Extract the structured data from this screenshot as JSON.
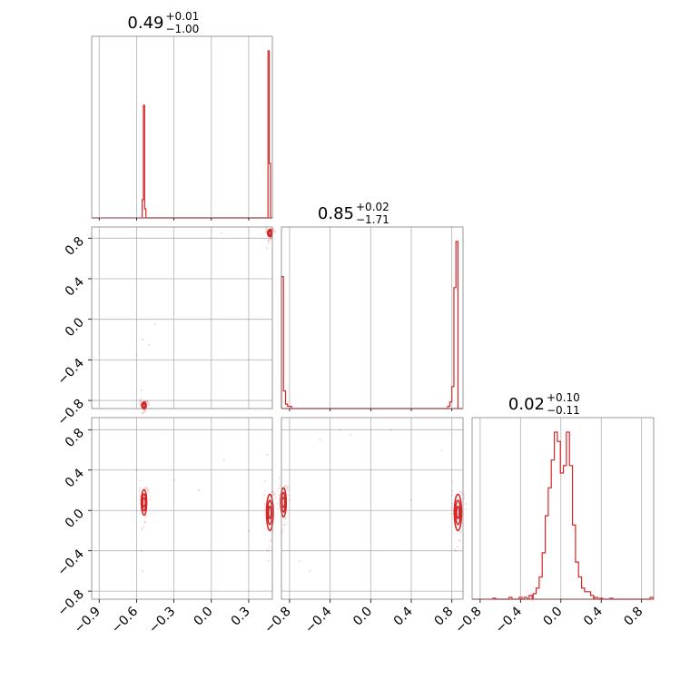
{
  "chart_data": {
    "type": "corner",
    "color": "#d62728",
    "grid": true,
    "parameter_summaries": [
      {
        "median": "0.49",
        "plus": "+0.01",
        "minus": "−1.00"
      },
      {
        "median": "0.85",
        "plus": "+0.02",
        "minus": "−1.71"
      },
      {
        "median": "0.02",
        "plus": "+0.10",
        "minus": "−0.11"
      }
    ],
    "axes": {
      "p0": {
        "lim": [
          -0.96,
          0.49
        ],
        "ticks": [
          -0.9,
          -0.6,
          -0.3,
          0.0,
          0.3
        ],
        "tick_labels": [
          "−0.9",
          "−0.6",
          "−0.3",
          "0.0",
          "0.3"
        ]
      },
      "p1": {
        "lim": [
          -0.88,
          0.91
        ],
        "ticks": [
          -0.8,
          -0.4,
          0.0,
          0.4,
          0.8
        ],
        "tick_labels": [
          "−0.8",
          "−0.4",
          "0.0",
          "0.4",
          "0.8"
        ]
      },
      "p2": {
        "lim": [
          -0.88,
          0.92
        ],
        "ticks": [
          -0.8,
          -0.4,
          0.0,
          0.4,
          0.8
        ],
        "tick_labels": [
          "−0.8",
          "−0.4",
          "0.0",
          "0.4",
          "0.8"
        ]
      }
    },
    "histograms": [
      {
        "param": "p0",
        "x": [
          -0.56,
          -0.55,
          -0.54,
          -0.53,
          -0.52,
          -0.51,
          0.45,
          0.46,
          0.47,
          0.48
        ],
        "counts": [
          0,
          0.1,
          0.62,
          0.05,
          0,
          0,
          0,
          0.92,
          0.3,
          0
        ]
      },
      {
        "param": "p1",
        "x": [
          -0.87,
          -0.85,
          -0.83,
          -0.81,
          -0.79,
          -0.77,
          0.77,
          0.79,
          0.81,
          0.83,
          0.85,
          0.87
        ],
        "counts": [
          0.6,
          0.08,
          0.02,
          0.01,
          0.01,
          0.0,
          0.01,
          0.03,
          0.1,
          0.55,
          0.76,
          0
        ]
      },
      {
        "param": "p2",
        "x": [
          -0.66,
          -0.5,
          -0.4,
          -0.35,
          -0.3,
          -0.26,
          -0.23,
          -0.2,
          -0.17,
          -0.14,
          -0.11,
          -0.08,
          -0.05,
          -0.02,
          0.01,
          0.04,
          0.07,
          0.1,
          0.13,
          0.16,
          0.19,
          0.22,
          0.25,
          0.28,
          0.31,
          0.35,
          0.4,
          0.5,
          0.9
        ],
        "counts": [
          0.005,
          0.01,
          0.01,
          0.01,
          0.02,
          0.03,
          0.06,
          0.12,
          0.25,
          0.45,
          0.6,
          0.75,
          0.9,
          0.85,
          0.68,
          0.72,
          0.9,
          0.72,
          0.4,
          0.2,
          0.12,
          0.06,
          0.04,
          0.04,
          0.02,
          0.01,
          0.005,
          0.005,
          0.01
        ]
      }
    ],
    "pair_panels": [
      {
        "x": "p0",
        "y": "p1",
        "modes": [
          {
            "cx": -0.54,
            "cy": -0.85,
            "sx": 0.01,
            "sy": 0.02
          },
          {
            "cx": 0.47,
            "cy": 0.85,
            "sx": 0.01,
            "sy": 0.02
          }
        ],
        "outliers": [
          [
            -0.6,
            -0.35
          ],
          [
            -0.55,
            -0.2
          ],
          [
            -0.45,
            -0.05
          ],
          [
            -0.5,
            -0.25
          ],
          [
            -0.56,
            -0.7
          ],
          [
            0.08,
            0.85
          ],
          [
            0.45,
            0.7
          ],
          [
            0.46,
            0.75
          ]
        ]
      },
      {
        "x": "p0",
        "y": "p2",
        "modes": [
          {
            "cx": -0.54,
            "cy": 0.08,
            "sx": 0.012,
            "sy": 0.07
          },
          {
            "cx": 0.47,
            "cy": -0.02,
            "sx": 0.015,
            "sy": 0.1
          }
        ],
        "outliers": [
          [
            -0.55,
            -0.6
          ],
          [
            -0.56,
            -0.4
          ],
          [
            -0.6,
            0.4
          ],
          [
            -0.3,
            0.3
          ],
          [
            0.1,
            0.5
          ],
          [
            -0.1,
            0.2
          ],
          [
            0.45,
            0.55
          ],
          [
            0.46,
            -0.5
          ],
          [
            0.3,
            -0.2
          ]
        ]
      },
      {
        "x": "p1",
        "y": "p2",
        "modes": [
          {
            "cx": -0.86,
            "cy": 0.08,
            "sx": 0.015,
            "sy": 0.08
          },
          {
            "cx": 0.86,
            "cy": -0.02,
            "sx": 0.02,
            "sy": 0.1
          }
        ],
        "outliers": [
          [
            -0.7,
            -0.5
          ],
          [
            -0.6,
            -0.6
          ],
          [
            -0.5,
            0.7
          ],
          [
            -0.3,
            0.8
          ],
          [
            0.2,
            0.8
          ],
          [
            0.7,
            0.6
          ],
          [
            0.4,
            0.1
          ],
          [
            -0.2,
            0.75
          ]
        ]
      }
    ]
  }
}
